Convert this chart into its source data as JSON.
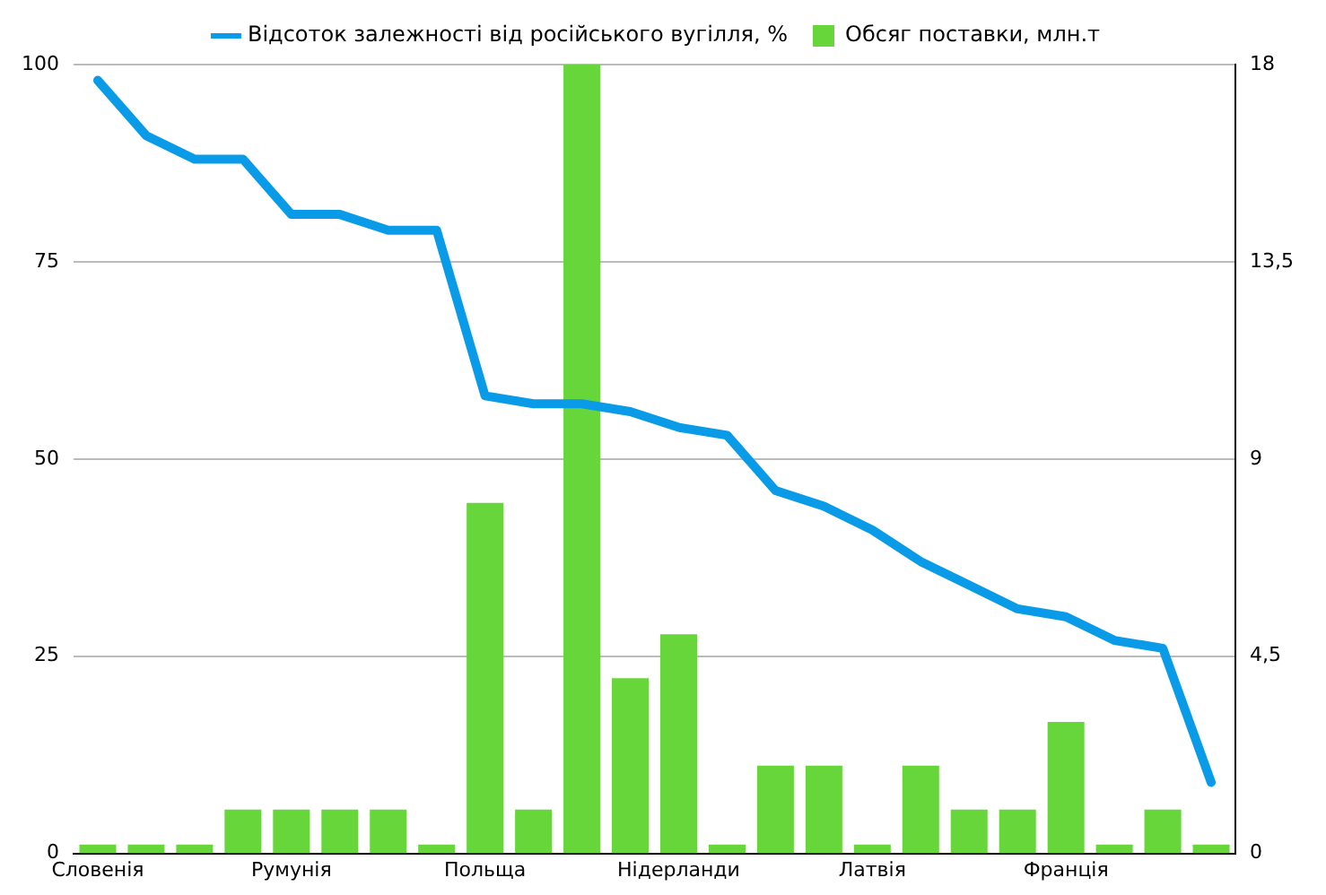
{
  "chart_data": {
    "type": "bar",
    "categories": [
      "Словенія",
      null,
      null,
      null,
      "Румунія",
      null,
      null,
      null,
      "Польща",
      null,
      null,
      null,
      "Нідерланди",
      null,
      null,
      null,
      "Латвія",
      null,
      null,
      null,
      "Франція",
      null,
      null,
      null
    ],
    "series": [
      {
        "name": "Відсоток залежності від російського вугілля, %",
        "type": "line",
        "color": "#0a9be8",
        "values": [
          98,
          91,
          88,
          88,
          81,
          81,
          79,
          79,
          58,
          57,
          57,
          56,
          54,
          53,
          46,
          44,
          41,
          37,
          34,
          31,
          30,
          27,
          26,
          9
        ]
      },
      {
        "name": "Обсяг поставки, млн.т",
        "axis": "y2",
        "color": "#66d63a",
        "values": [
          0.2,
          0.2,
          0.2,
          1,
          1,
          1,
          1,
          0.2,
          8,
          1,
          18,
          4,
          5,
          0.2,
          2,
          2,
          0.2,
          2,
          1,
          1,
          3,
          0.2,
          1,
          0.2
        ]
      }
    ],
    "ylim": [
      0,
      100
    ],
    "yticks": [
      0,
      25,
      50,
      75,
      100
    ],
    "y2lim": [
      0,
      18
    ],
    "y2ticks": [
      0,
      {
        "value": 4.5,
        "label": "4,5"
      },
      9,
      {
        "value": 13.5,
        "label": "13,5"
      },
      18
    ],
    "grid": "y",
    "legend": "top",
    "marker": "none"
  }
}
